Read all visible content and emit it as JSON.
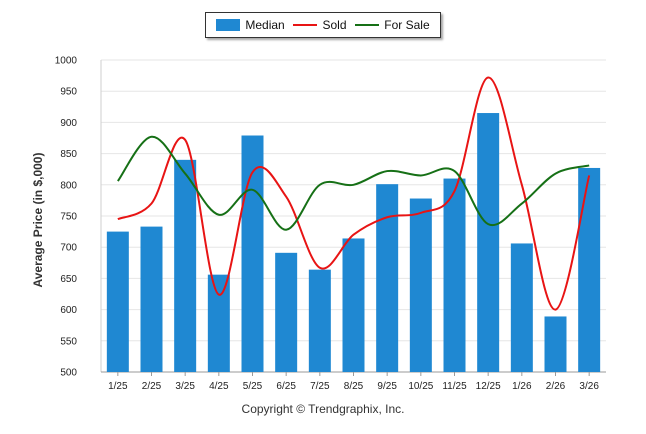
{
  "chart_data": {
    "type": "bar",
    "categories": [
      "1/25",
      "2/25",
      "3/25",
      "4/25",
      "5/25",
      "6/25",
      "7/25",
      "8/25",
      "9/25",
      "10/25",
      "11/25",
      "12/25",
      "1/26",
      "2/26",
      "3/26"
    ],
    "series": [
      {
        "name": "Median",
        "type": "bar",
        "color": "#1f88d2",
        "values": [
          725,
          733,
          840,
          656,
          879,
          691,
          664,
          714,
          801,
          778,
          810,
          915,
          706,
          589,
          827
        ]
      },
      {
        "name": "Sold",
        "type": "line",
        "color": "#e81414",
        "values": [
          745,
          770,
          872,
          624,
          820,
          781,
          667,
          720,
          748,
          755,
          790,
          972,
          800,
          600,
          815
        ]
      },
      {
        "name": "For Sale",
        "type": "line",
        "color": "#167016",
        "values": [
          806,
          877,
          818,
          752,
          792,
          728,
          800,
          800,
          822,
          815,
          822,
          737,
          770,
          818,
          831
        ]
      }
    ],
    "ylabel": "Average Price (in $,000)",
    "xlabel": "",
    "ylim": [
      500,
      1000
    ],
    "yticks": [
      500,
      550,
      600,
      650,
      700,
      750,
      800,
      850,
      900,
      950,
      1000
    ],
    "grid": true,
    "legend_position": "top-center"
  },
  "footer": {
    "copyright": "Copyright © Trendgraphix, Inc."
  }
}
